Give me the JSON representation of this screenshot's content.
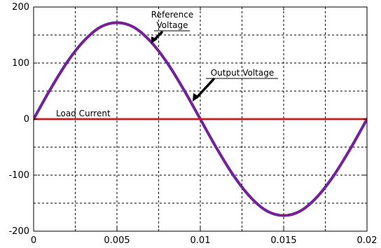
{
  "chart_data": {
    "type": "line",
    "title": "",
    "xlabel": "",
    "ylabel": "",
    "xlim": [
      0,
      0.02
    ],
    "ylim": [
      -200,
      200
    ],
    "x_ticks": [
      0,
      0.005,
      0.01,
      0.015,
      0.02
    ],
    "x_tick_labels": [
      "0",
      "0.005",
      "0.01",
      "0.015",
      "0.02"
    ],
    "y_ticks": [
      -200,
      -100,
      0,
      100,
      200
    ],
    "y_tick_labels": [
      "-200",
      "-100",
      "0",
      "100",
      "200"
    ],
    "grid": true,
    "grid_style": "dashed",
    "series": [
      {
        "name": "Reference Voltage",
        "color": "#ff0000",
        "x": [
          0,
          0.001,
          0.002,
          0.003,
          0.004,
          0.005,
          0.006,
          0.007,
          0.008,
          0.009,
          0.01,
          0.011,
          0.012,
          0.013,
          0.014,
          0.015,
          0.016,
          0.017,
          0.018,
          0.019,
          0.02
        ],
        "y": [
          0,
          53,
          101,
          139,
          164,
          172,
          164,
          139,
          101,
          53,
          0,
          -53,
          -101,
          -139,
          -164,
          -172,
          -164,
          -139,
          -101,
          -53,
          0
        ]
      },
      {
        "name": "Output Voltage",
        "color": "#2b2bff",
        "x": [
          0,
          0.001,
          0.002,
          0.003,
          0.004,
          0.005,
          0.006,
          0.007,
          0.008,
          0.009,
          0.01,
          0.011,
          0.012,
          0.013,
          0.014,
          0.015,
          0.016,
          0.017,
          0.018,
          0.019,
          0.02
        ],
        "y": [
          0,
          53,
          101,
          139,
          164,
          172,
          164,
          139,
          101,
          53,
          0,
          -53,
          -101,
          -139,
          -164,
          -172,
          -164,
          -139,
          -101,
          -53,
          0
        ]
      },
      {
        "name": "Load Current",
        "color": "#ff0000",
        "x": [
          0,
          0.02
        ],
        "y": [
          0,
          0
        ]
      }
    ],
    "annotations": [
      {
        "id": "reference-voltage",
        "lines": [
          "Reference",
          "Voltage"
        ],
        "points_to": [
          0.0073,
          137
        ]
      },
      {
        "id": "output-voltage",
        "lines": [
          "Output Voltage"
        ],
        "points_to": [
          0.0098,
          35
        ]
      },
      {
        "id": "load-current",
        "lines": [
          "Load Current"
        ]
      }
    ]
  }
}
